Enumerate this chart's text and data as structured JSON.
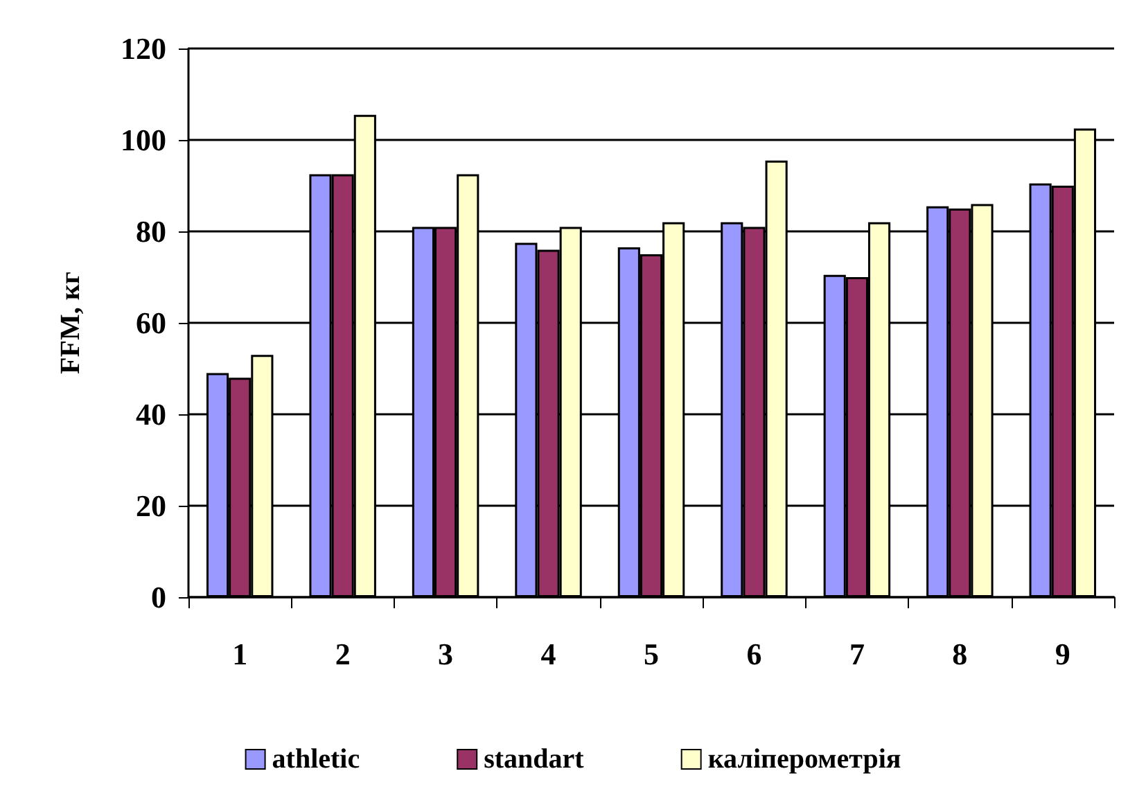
{
  "chart_data": {
    "type": "bar",
    "ylabel": "FFM, кг",
    "categories": [
      "1",
      "2",
      "3",
      "4",
      "5",
      "6",
      "7",
      "8",
      "9"
    ],
    "series": [
      {
        "name": "athletic",
        "color": "#9999ff",
        "values": [
          49,
          92.5,
          81,
          77.5,
          76.5,
          82,
          70.5,
          85.5,
          90.5
        ]
      },
      {
        "name": "standart",
        "color": "#993366",
        "values": [
          48,
          92.5,
          81,
          76,
          75,
          81,
          70,
          85,
          90
        ]
      },
      {
        "name": "каліперометрія",
        "color": "#ffffcc",
        "values": [
          53,
          105.5,
          92.5,
          81,
          82,
          95.5,
          82,
          86,
          102.5
        ]
      }
    ],
    "ylim": [
      0,
      120
    ],
    "yticks": [
      0,
      20,
      40,
      60,
      80,
      100,
      120
    ],
    "grid": "y",
    "legend": "bottom"
  }
}
